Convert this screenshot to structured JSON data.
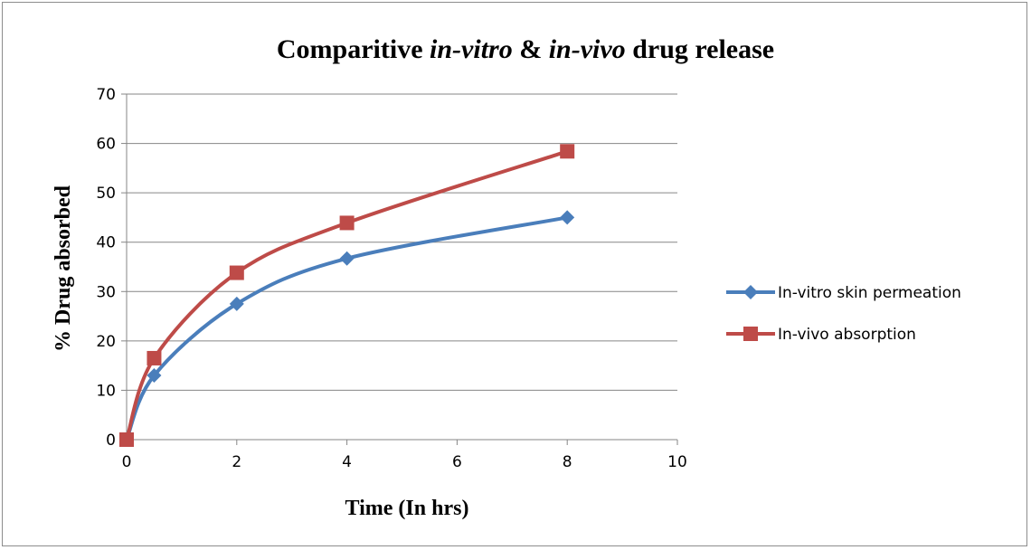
{
  "chart_data": {
    "type": "line",
    "title_parts": [
      {
        "text": "Comparitive ",
        "italic": false
      },
      {
        "text": "in-vitro",
        "italic": true
      },
      {
        "text": " & ",
        "italic": false
      },
      {
        "text": "in-vivo",
        "italic": true
      },
      {
        "text": " drug release",
        "italic": false
      }
    ],
    "xlabel": "Time (In hrs)",
    "ylabel": "% Drug absorbed",
    "xlim": [
      0,
      10
    ],
    "ylim": [
      0,
      70
    ],
    "xticks": [
      0,
      2,
      4,
      6,
      8,
      10
    ],
    "yticks": [
      0,
      10,
      20,
      30,
      40,
      50,
      60,
      70
    ],
    "grid": "horizontal",
    "smooth": true,
    "legend_position": "right",
    "series": [
      {
        "name": "In-vitro skin permeation",
        "color": "#4a7ebb",
        "marker": "diamond",
        "x": [
          0,
          0.5,
          2,
          4,
          8
        ],
        "y": [
          0,
          13,
          27.5,
          36.7,
          45
        ]
      },
      {
        "name": "In-vivo absorption",
        "color": "#be4b48",
        "marker": "square",
        "x": [
          0,
          0.5,
          2,
          4,
          8
        ],
        "y": [
          0,
          16.5,
          33.8,
          43.9,
          58.4
        ]
      }
    ]
  }
}
